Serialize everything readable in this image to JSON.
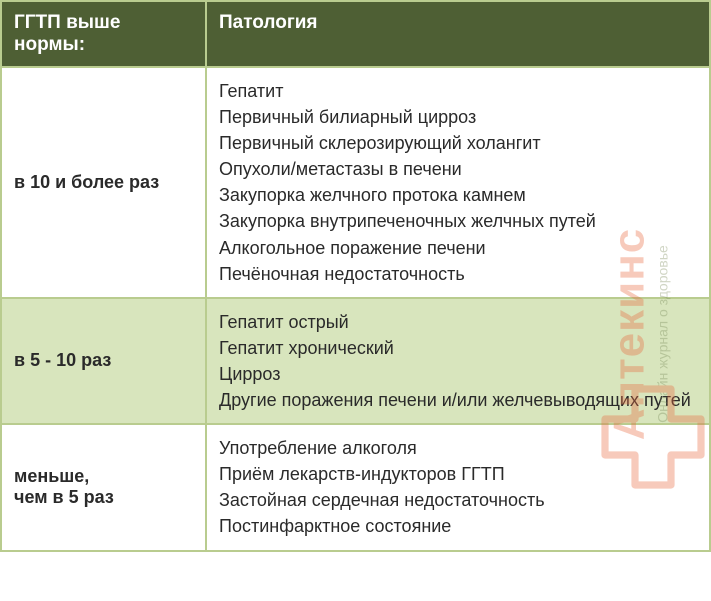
{
  "table": {
    "header_bg": "#4e5f34",
    "border_color": "#b9cc8f",
    "row_alt_bg": "#d8e5bd",
    "row_bg": "#ffffff",
    "text_color": "#2a2a2a",
    "header_text_color": "#ffffff",
    "font_size_header": 19,
    "font_size_cell": 18,
    "col1_label": "ГГТП выше нормы:",
    "col2_label": "Патология",
    "rows": [
      {
        "level": "в 10 и более раз",
        "bg": "white",
        "items": [
          "Гепатит",
          "Первичный билиарный цирроз",
          "Первичный склерозирующий холангит",
          "Опухоли/метастазы в печени",
          "Закупорка желчного протока камнем",
          "Закупорка внутрипеченочных желчных путей",
          "Алкогольное поражение печени",
          "Печёночная недостаточность"
        ]
      },
      {
        "level": "в 5 - 10 раз",
        "bg": "green",
        "items": [
          "Гепатит острый",
          "Гепатит хронический",
          "Цирроз",
          "Другие поражения печени и/или  желчевыводящих путей"
        ]
      },
      {
        "level": "меньше,\nчем в 5 раз",
        "bg": "white",
        "items": [
          "Употребление алкоголя",
          "Приём  лекарств-индукторов ГГТП",
          "Застойная сердечная недостаточность",
          "Постинфарктное состояние"
        ]
      }
    ]
  },
  "watermark": {
    "main": "Аптекинс",
    "sub": "Онлайн журнал о здоровье",
    "main_color": "#e96a3f",
    "sub_color": "#7a8a5a",
    "cross_color": "#e96a3f"
  }
}
